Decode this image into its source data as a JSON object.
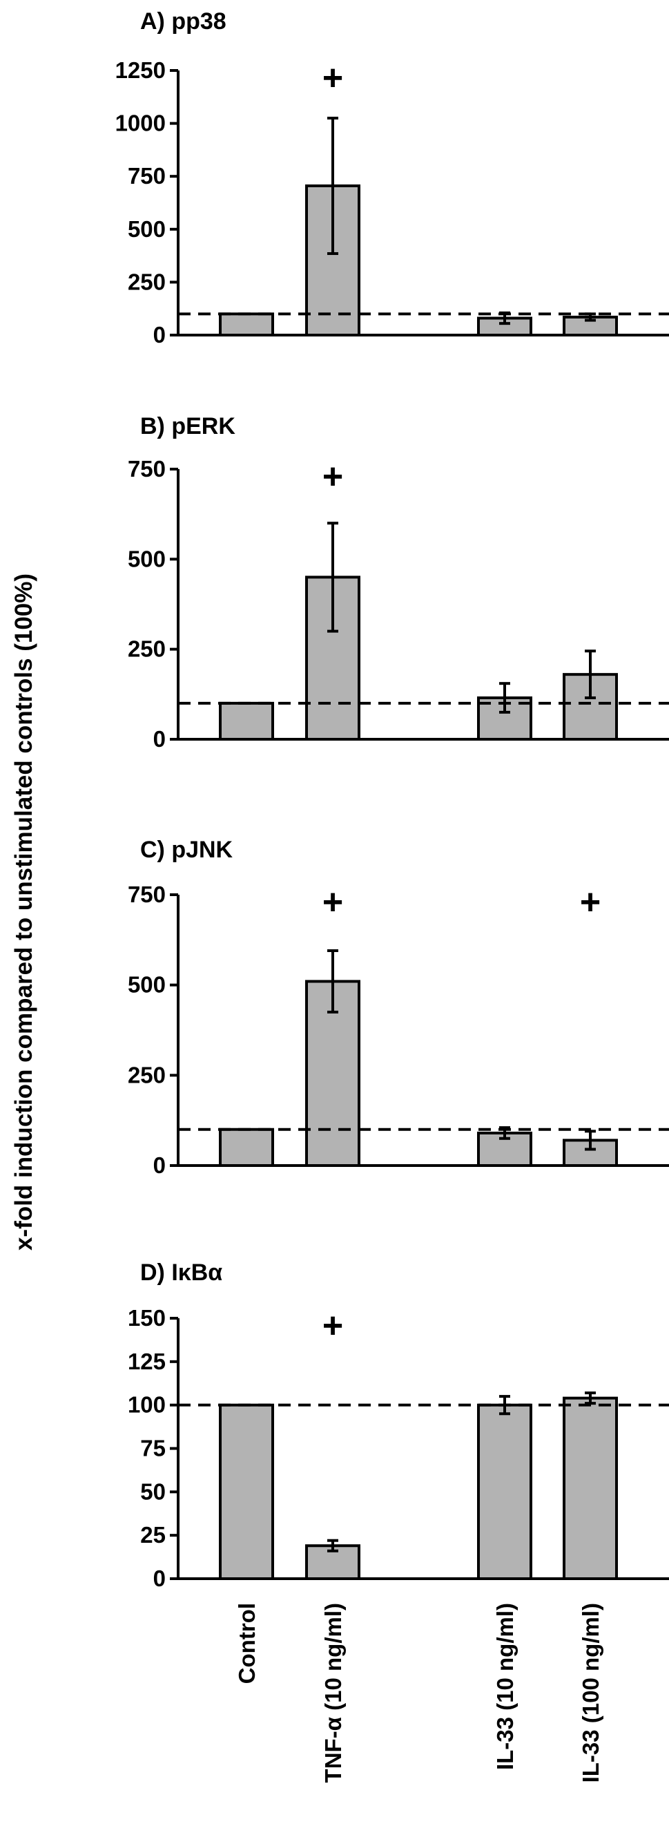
{
  "ylabel": "x-fold induction compared to  unstimulated controls (100%)",
  "chart_data": [
    {
      "type": "bar",
      "title": "A) pp38",
      "categories": [
        "Control",
        "TNF-α (10 ng/ml)",
        "IL-33 (10 ng/ml)",
        "IL-33 (100 ng/ml)"
      ],
      "values": [
        100,
        705,
        80,
        85
      ],
      "errors": [
        0,
        320,
        25,
        15
      ],
      "significant": [
        false,
        true,
        false,
        false
      ],
      "ylim": [
        0,
        1250
      ],
      "yticks": [
        "0",
        "250",
        "500",
        "750",
        "1000",
        "1250"
      ],
      "reference_line": 100
    },
    {
      "type": "bar",
      "title": "B) pERK",
      "categories": [
        "Control",
        "TNF-α (10 ng/ml)",
        "IL-33 (10 ng/ml)",
        "IL-33 (100 ng/ml)"
      ],
      "values": [
        100,
        450,
        115,
        180
      ],
      "errors": [
        0,
        150,
        40,
        65
      ],
      "significant": [
        false,
        true,
        false,
        false
      ],
      "ylim": [
        0,
        750
      ],
      "yticks": [
        "0",
        "250",
        "500",
        "750"
      ],
      "reference_line": 100
    },
    {
      "type": "bar",
      "title": "C) pJNK",
      "categories": [
        "Control",
        "TNF-α (10 ng/ml)",
        "IL-33 (10 ng/ml)",
        "IL-33 (100 ng/ml)"
      ],
      "values": [
        100,
        510,
        90,
        70
      ],
      "errors": [
        0,
        85,
        15,
        25
      ],
      "significant": [
        false,
        true,
        false,
        true
      ],
      "ylim": [
        0,
        750
      ],
      "yticks": [
        "0",
        "250",
        "500",
        "750"
      ],
      "reference_line": 100
    },
    {
      "type": "bar",
      "title": "D) IκBα",
      "categories": [
        "Control",
        "TNF-α (10 ng/ml)",
        "IL-33 (10 ng/ml)",
        "IL-33 (100 ng/ml)"
      ],
      "values": [
        100,
        19,
        100,
        104
      ],
      "errors": [
        0,
        3,
        5,
        3
      ],
      "significant": [
        false,
        true,
        false,
        false
      ],
      "ylim": [
        0,
        150
      ],
      "yticks": [
        "0",
        "25",
        "50",
        "75",
        "100",
        "125",
        "150"
      ],
      "reference_line": 100
    }
  ],
  "plus_symbol": "+",
  "colors": {
    "bar_fill": "#b3b3b3",
    "bar_stroke": "#000000",
    "line": "#000000"
  }
}
